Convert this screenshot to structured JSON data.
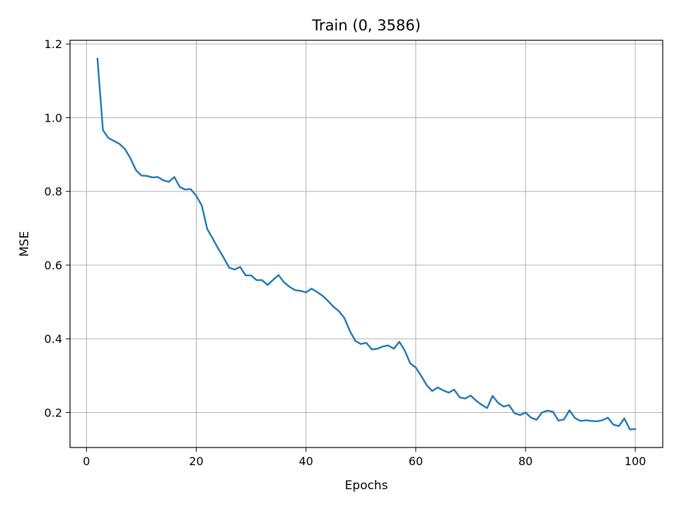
{
  "chart_data": {
    "type": "line",
    "title": "Train (0, 3586)",
    "xlabel": "Epochs",
    "ylabel": "MSE",
    "xlim": [
      -3,
      105
    ],
    "ylim": [
      0.105,
      1.21
    ],
    "xticks": [
      0,
      20,
      40,
      60,
      80,
      100
    ],
    "yticks": [
      0.2,
      0.4,
      0.6,
      0.8,
      1.0,
      1.2
    ],
    "xtick_labels": [
      "0",
      "20",
      "40",
      "60",
      "80",
      "100"
    ],
    "ytick_labels": [
      "0.2",
      "0.4",
      "0.6",
      "0.8",
      "1.0",
      "1.2"
    ],
    "grid": true,
    "series": [
      {
        "color": "#1f77b4",
        "x": [
          2,
          3,
          4,
          5,
          6,
          7,
          8,
          9,
          10,
          11,
          12,
          13,
          14,
          15,
          16,
          17,
          18,
          19,
          20,
          21,
          22,
          23,
          24,
          25,
          26,
          27,
          28,
          29,
          30,
          31,
          32,
          33,
          34,
          35,
          36,
          37,
          38,
          39,
          40,
          41,
          42,
          43,
          44,
          45,
          46,
          47,
          48,
          49,
          50,
          51,
          52,
          53,
          54,
          55,
          56,
          57,
          58,
          59,
          60,
          61,
          62,
          63,
          64,
          65,
          66,
          67,
          68,
          69,
          70,
          71,
          72,
          73,
          74,
          75,
          76,
          77,
          78,
          79,
          80,
          81,
          82,
          83,
          84,
          85,
          86,
          87,
          88,
          89,
          90,
          91,
          92,
          93,
          94,
          95,
          96,
          97,
          98,
          99,
          100
        ],
        "y": [
          1.16,
          0.966,
          0.945,
          0.937,
          0.929,
          0.915,
          0.89,
          0.858,
          0.843,
          0.842,
          0.838,
          0.839,
          0.83,
          0.826,
          0.839,
          0.812,
          0.805,
          0.806,
          0.788,
          0.762,
          0.698,
          0.672,
          0.645,
          0.62,
          0.593,
          0.588,
          0.595,
          0.572,
          0.572,
          0.559,
          0.559,
          0.546,
          0.56,
          0.573,
          0.553,
          0.541,
          0.532,
          0.53,
          0.526,
          0.536,
          0.527,
          0.517,
          0.503,
          0.487,
          0.475,
          0.456,
          0.421,
          0.394,
          0.386,
          0.389,
          0.371,
          0.373,
          0.379,
          0.382,
          0.373,
          0.392,
          0.368,
          0.333,
          0.322,
          0.299,
          0.274,
          0.258,
          0.268,
          0.26,
          0.254,
          0.262,
          0.241,
          0.238,
          0.246,
          0.232,
          0.221,
          0.212,
          0.245,
          0.226,
          0.216,
          0.22,
          0.198,
          0.193,
          0.2,
          0.186,
          0.18,
          0.2,
          0.205,
          0.202,
          0.178,
          0.181,
          0.206,
          0.185,
          0.177,
          0.179,
          0.177,
          0.176,
          0.179,
          0.186,
          0.167,
          0.163,
          0.184,
          0.154,
          0.155
        ]
      }
    ]
  }
}
